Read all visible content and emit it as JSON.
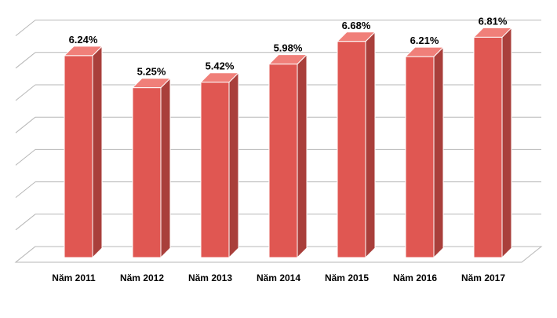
{
  "chart_data": {
    "type": "bar",
    "style": "3d-column",
    "categories": [
      "Năm 2011",
      "Năm 2012",
      "Năm 2013",
      "Năm 2014",
      "Năm 2015",
      "Năm 2016",
      "Năm 2017"
    ],
    "values": [
      6.24,
      5.25,
      5.42,
      5.98,
      6.68,
      6.21,
      6.81
    ],
    "value_labels": [
      "6.24%",
      "5.25%",
      "5.42%",
      "5.98%",
      "6.68%",
      "6.21%",
      "6.81%"
    ],
    "ylim": [
      0,
      7
    ],
    "yticks": [
      0,
      1,
      2,
      3,
      4,
      5,
      6,
      7
    ],
    "show_y_tick_labels": false,
    "grid": true,
    "legend": "none",
    "colors": {
      "bar_front": "#e05752",
      "bar_side": "#a93f3b",
      "bar_top": "#f07f79",
      "bar_edge": "#ffffff",
      "grid": "#b7b7b7",
      "floor": "#ffffff"
    }
  }
}
